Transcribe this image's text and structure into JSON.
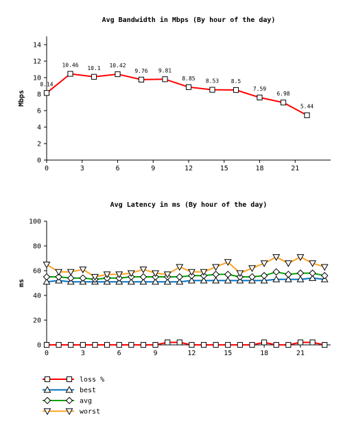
{
  "chart_data": [
    {
      "type": "line",
      "title": "Avg Bandwidth in Mbps (By hour of the day)",
      "xlabel": "",
      "ylabel": "Mbps",
      "xlim": [
        0,
        24
      ],
      "ylim": [
        0,
        15
      ],
      "xticks": [
        0,
        3,
        6,
        9,
        12,
        15,
        18,
        21
      ],
      "yticks": [
        0,
        2,
        4,
        6,
        8,
        10,
        12,
        14
      ],
      "grid": false,
      "series": [
        {
          "color": "#ff0000",
          "marker": "square",
          "x": [
            0,
            2,
            4,
            6,
            8,
            10,
            12,
            14,
            16,
            18,
            20,
            22
          ],
          "values": [
            8.14,
            10.46,
            10.1,
            10.42,
            9.76,
            9.81,
            8.85,
            8.53,
            8.5,
            7.59,
            6.98,
            5.44
          ],
          "labels": [
            "8.14",
            "10.46",
            "10.1",
            "10.42",
            "9.76",
            "9.81",
            "8.85",
            "8.53",
            "8.5",
            "7.59",
            "6.98",
            "5.44"
          ]
        }
      ]
    },
    {
      "type": "line",
      "title": "Avg Latency in ms (By hour of the day)",
      "xlabel": "",
      "ylabel": "ms",
      "xlim": [
        0,
        23.5
      ],
      "ylim": [
        0,
        100
      ],
      "xticks": [
        0,
        3,
        6,
        9,
        12,
        15,
        18,
        21
      ],
      "yticks": [
        0,
        20,
        40,
        60,
        80,
        100
      ],
      "grid": false,
      "legend_position": "bottom-left",
      "x": [
        0,
        1,
        2,
        3,
        4,
        5,
        6,
        7,
        8,
        9,
        10,
        11,
        12,
        13,
        14,
        15,
        16,
        17,
        18,
        19,
        20,
        21,
        22,
        23
      ],
      "series": [
        {
          "name": "loss %",
          "color": "#ff0000",
          "marker": "square",
          "values": [
            0,
            0,
            0,
            0,
            0,
            0,
            0,
            0,
            0,
            0,
            2,
            2,
            0,
            0,
            0,
            0,
            0,
            0,
            2,
            0,
            0,
            2,
            2,
            0
          ]
        },
        {
          "name": "best",
          "color": "#0070c0",
          "marker": "triangle-up",
          "values": [
            51,
            52,
            51,
            51,
            51,
            51,
            51,
            51,
            51,
            51,
            51,
            51,
            52,
            52,
            52,
            52,
            52,
            52,
            52,
            53,
            53,
            53,
            54,
            53
          ]
        },
        {
          "name": "avg",
          "color": "#00a000",
          "marker": "diamond",
          "values": [
            55,
            55,
            54,
            54,
            53,
            54,
            54,
            55,
            55,
            55,
            55,
            55,
            56,
            56,
            57,
            57,
            55,
            55,
            56,
            59,
            57,
            58,
            58,
            56
          ]
        },
        {
          "name": "worst",
          "color": "#ffa020",
          "marker": "triangle-down",
          "values": [
            65,
            59,
            59,
            61,
            55,
            57,
            57,
            58,
            61,
            58,
            57,
            63,
            59,
            59,
            63,
            67,
            58,
            62,
            66,
            71,
            66,
            71,
            66,
            63
          ]
        }
      ]
    }
  ]
}
